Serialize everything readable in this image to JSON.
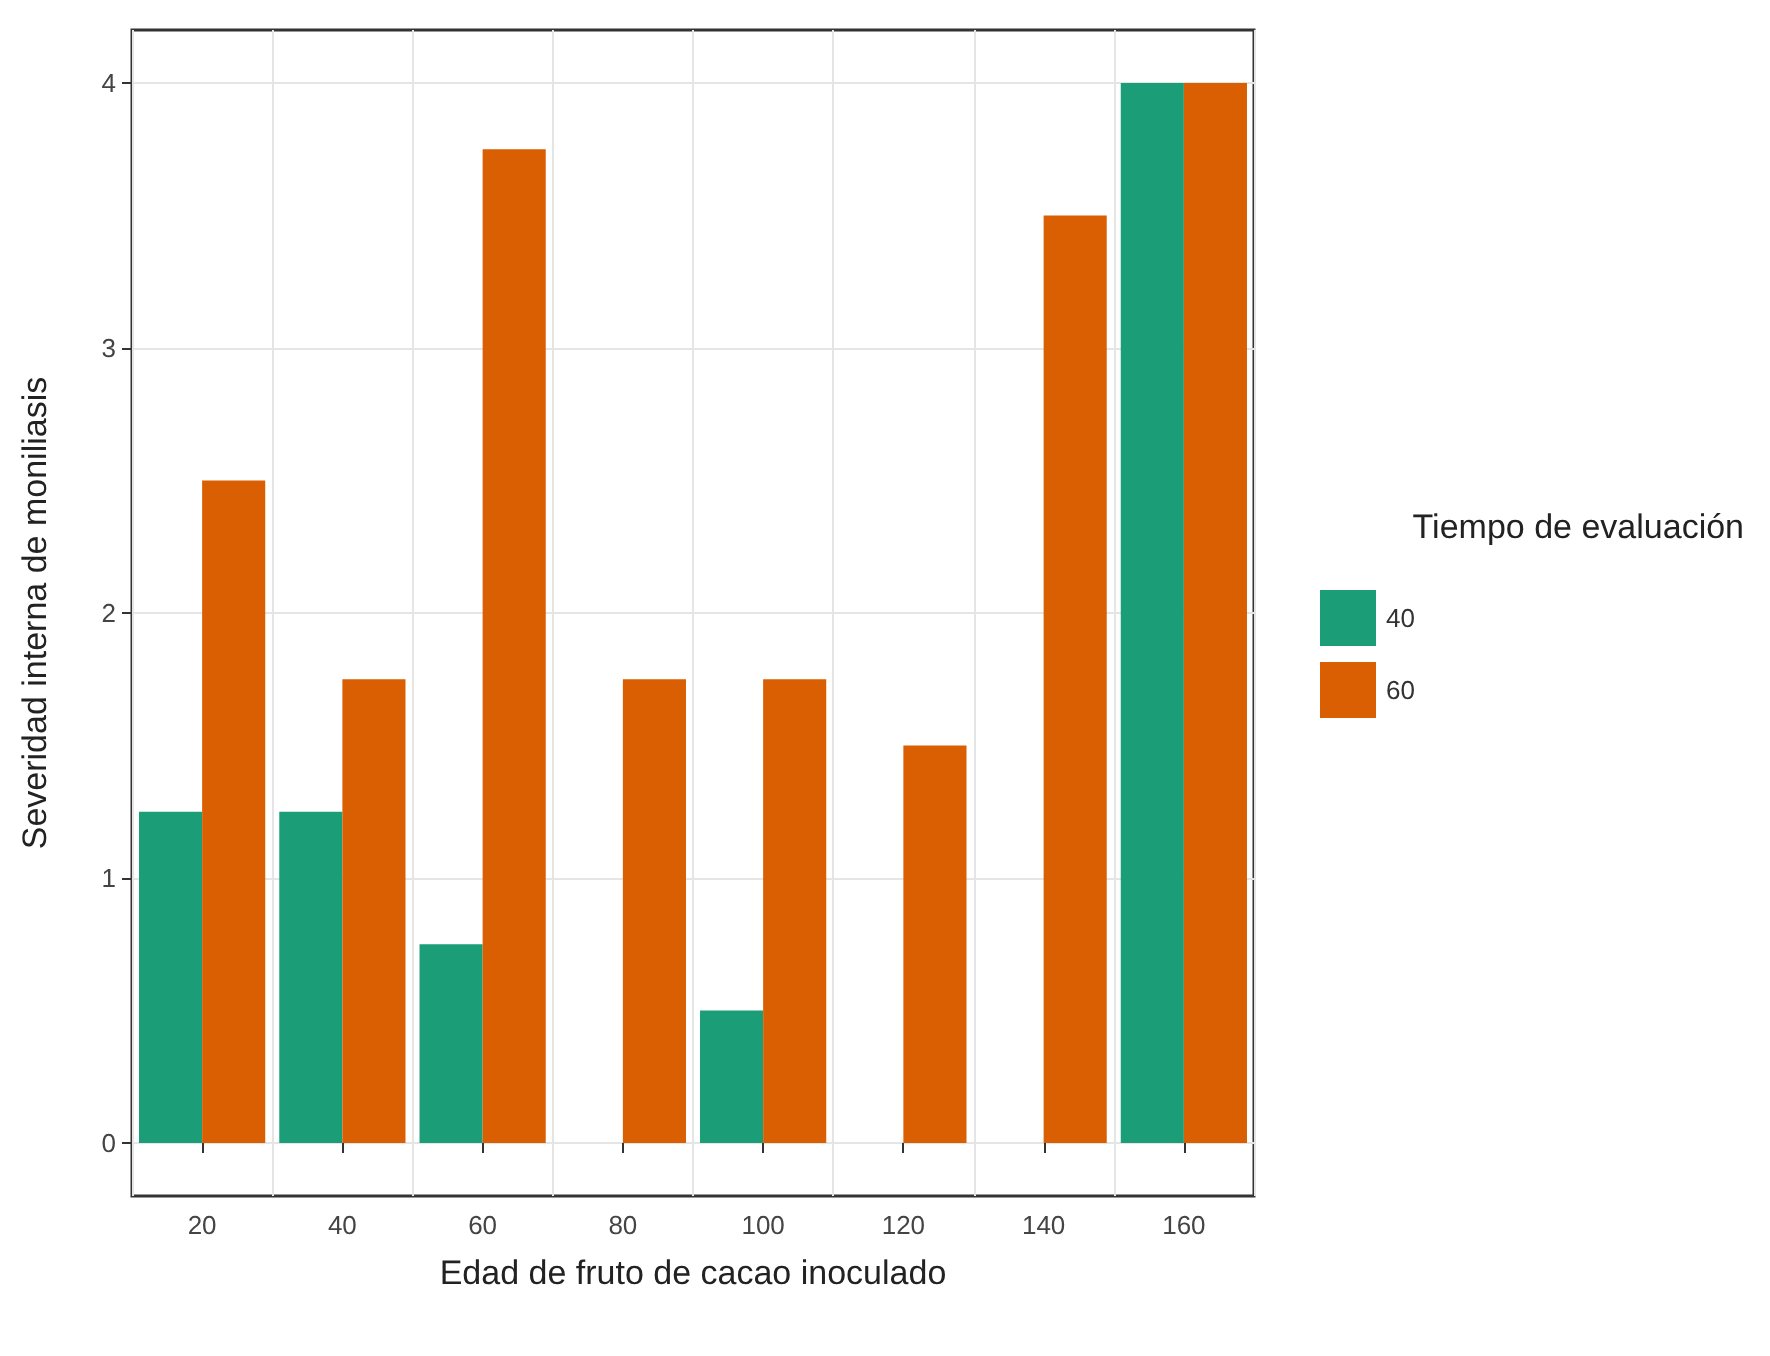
{
  "chart_data": {
    "type": "bar",
    "xlabel": "Edad de fruto de cacao inoculado",
    "ylabel": "Severidad interna de moniliasis",
    "legend_title": "Tiempo de evaluación",
    "categories": [
      "20",
      "40",
      "60",
      "80",
      "100",
      "120",
      "140",
      "160"
    ],
    "series": [
      {
        "name": "40",
        "color": "#1b9e77",
        "values": [
          1.25,
          1.25,
          0.75,
          0,
          0.5,
          0,
          0,
          4
        ]
      },
      {
        "name": "60",
        "color": "#d95f02",
        "values": [
          2.5,
          1.75,
          3.75,
          1.75,
          1.75,
          1.5,
          3.5,
          4
        ]
      }
    ],
    "ylim": [
      -0.2,
      4.2
    ],
    "yticks": [
      0,
      1,
      2,
      3,
      4
    ],
    "grid": true,
    "legend": "right"
  }
}
